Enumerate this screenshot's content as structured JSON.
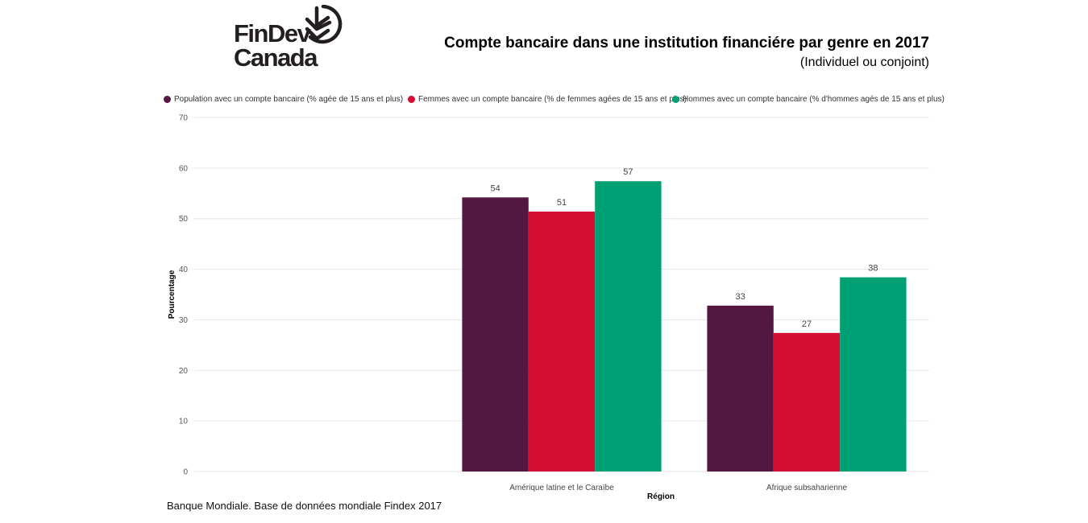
{
  "brand": {
    "line1": "FinDev",
    "line2": "Canada"
  },
  "header": {
    "title": "Compte bancaire dans une institution financiére par genre en 2017",
    "subtitle": "(Individuel ou conjoint)"
  },
  "source": "Banque Mondiale. Base de données mondiale Findex 2017",
  "colors": {
    "population": "#541741",
    "femmes": "#d50f34",
    "hommes": "#00a074",
    "logo": "#231f20"
  },
  "chart_data": {
    "type": "bar",
    "title": "Compte bancaire dans une institution financiére par genre en 2017",
    "subtitle": "(Individuel ou conjoint)",
    "xlabel": "Région",
    "ylabel": "Pourcentage",
    "ylim": [
      0,
      70
    ],
    "yticks": [
      0,
      10,
      20,
      30,
      40,
      50,
      60,
      70
    ],
    "grid": true,
    "legend_position": "top",
    "categories": [
      "",
      "Amérique latine et le Caraïbe",
      "Afrique subsaharienne"
    ],
    "series": [
      {
        "name": "Population avec un compte bancaire (% agée de 15 ans et plus)",
        "color": "#541741",
        "values": [
          null,
          54.2,
          32.8
        ],
        "labels": [
          "",
          "54",
          "33"
        ]
      },
      {
        "name": "Femmes avec un compte bancaire (% de femmes agées de 15 ans et plus)",
        "color": "#d50f34",
        "values": [
          null,
          51.4,
          27.4
        ],
        "labels": [
          "",
          "51",
          "27"
        ]
      },
      {
        "name": "Hommes avec un compte bancaire (% d'hommes agés de 15 ans et plus)",
        "color": "#00a074",
        "values": [
          null,
          57.4,
          38.4
        ],
        "labels": [
          "",
          "57",
          "38"
        ]
      }
    ]
  }
}
